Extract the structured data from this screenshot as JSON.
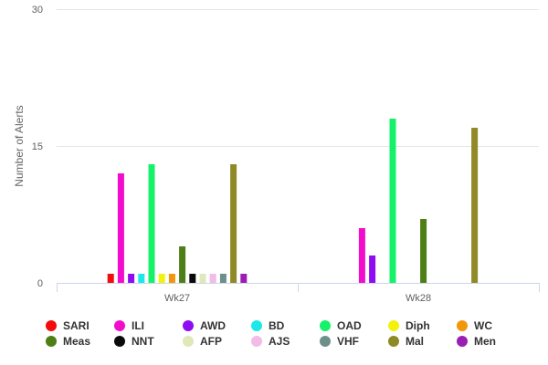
{
  "chart_data": {
    "type": "bar",
    "title": "",
    "xlabel": "",
    "ylabel": "Number of Alerts",
    "ylim": [
      0,
      30
    ],
    "yticks": [
      0,
      15,
      30
    ],
    "grid": true,
    "legend_position": "bottom",
    "categories": [
      "Wk27",
      "Wk28"
    ],
    "series": [
      {
        "name": "SARI",
        "color": "#f20c0c",
        "values": [
          1,
          0
        ]
      },
      {
        "name": "ILI",
        "color": "#f20ccc",
        "values": [
          12,
          6
        ]
      },
      {
        "name": "AWD",
        "color": "#8f0cf2",
        "values": [
          1,
          3
        ]
      },
      {
        "name": "BD",
        "color": "#1ce8e8",
        "values": [
          1,
          0
        ]
      },
      {
        "name": "OAD",
        "color": "#15f26a",
        "values": [
          13,
          18
        ]
      },
      {
        "name": "Diph",
        "color": "#f2f20c",
        "values": [
          1,
          0
        ]
      },
      {
        "name": "WC",
        "color": "#f2960c",
        "values": [
          1,
          0
        ]
      },
      {
        "name": "Meas",
        "color": "#4e7f16",
        "values": [
          4,
          7
        ]
      },
      {
        "name": "NNT",
        "color": "#0a0a0a",
        "values": [
          1,
          0
        ]
      },
      {
        "name": "AFP",
        "color": "#dfe8b9",
        "values": [
          1,
          0
        ]
      },
      {
        "name": "AJS",
        "color": "#f2bbe8",
        "values": [
          1,
          0
        ]
      },
      {
        "name": "VHF",
        "color": "#6d8f8a",
        "values": [
          1,
          0
        ]
      },
      {
        "name": "Mal",
        "color": "#8f8a25",
        "values": [
          13,
          17
        ]
      },
      {
        "name": "Men",
        "color": "#9b1eb4",
        "values": [
          1,
          0
        ]
      }
    ]
  }
}
